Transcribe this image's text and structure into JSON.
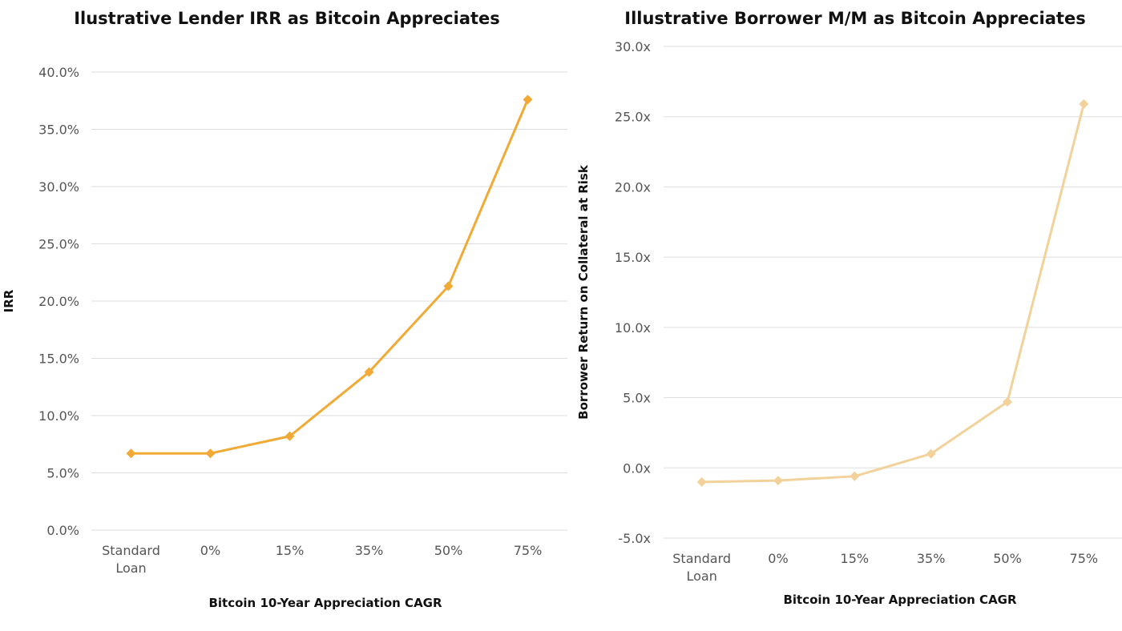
{
  "chart_data": [
    {
      "type": "line",
      "title": "Ilustrative Lender IRR as Bitcoin Appreciates",
      "xlabel": "Bitcoin 10-Year Appreciation CAGR",
      "ylabel": "IRR",
      "categories": [
        [
          "Standard",
          "Loan"
        ],
        [
          "0%"
        ],
        [
          "15%"
        ],
        [
          "35%"
        ],
        [
          "50%"
        ],
        [
          "75%"
        ]
      ],
      "ylim": [
        0,
        40
      ],
      "yticks": [
        0,
        5,
        10,
        15,
        20,
        25,
        30,
        35,
        40
      ],
      "ytick_labels": [
        "0.0%",
        "5.0%",
        "10.0%",
        "15.0%",
        "20.0%",
        "25.0%",
        "30.0%",
        "35.0%",
        "40.0%"
      ],
      "grid": true,
      "legend": "none",
      "marker": "diamond",
      "color": "#F0AA35",
      "series": [
        {
          "values": [
            6.7,
            6.7,
            8.2,
            13.8,
            21.3,
            37.6
          ]
        }
      ]
    },
    {
      "type": "line",
      "title": "Illustrative Borrower M/M as Bitcoin Appreciates",
      "xlabel": "Bitcoin 10-Year Appreciation CAGR",
      "ylabel": "Borrower Return on Collateral at Risk",
      "categories": [
        [
          "Standard",
          "Loan"
        ],
        [
          "0%"
        ],
        [
          "15%"
        ],
        [
          "35%"
        ],
        [
          "50%"
        ],
        [
          "75%"
        ]
      ],
      "ylim": [
        -5,
        30
      ],
      "yticks": [
        -5,
        0,
        5,
        10,
        15,
        20,
        25,
        30
      ],
      "ytick_labels": [
        "-5.0x",
        "0.0x",
        "5.0x",
        "10.0x",
        "15.0x",
        "20.0x",
        "25.0x",
        "30.0x"
      ],
      "grid": true,
      "legend": "none",
      "marker": "diamond",
      "color": "#F2D29A",
      "series": [
        {
          "values": [
            -1.0,
            -0.9,
            -0.6,
            1.0,
            4.7,
            25.9
          ]
        }
      ]
    }
  ]
}
